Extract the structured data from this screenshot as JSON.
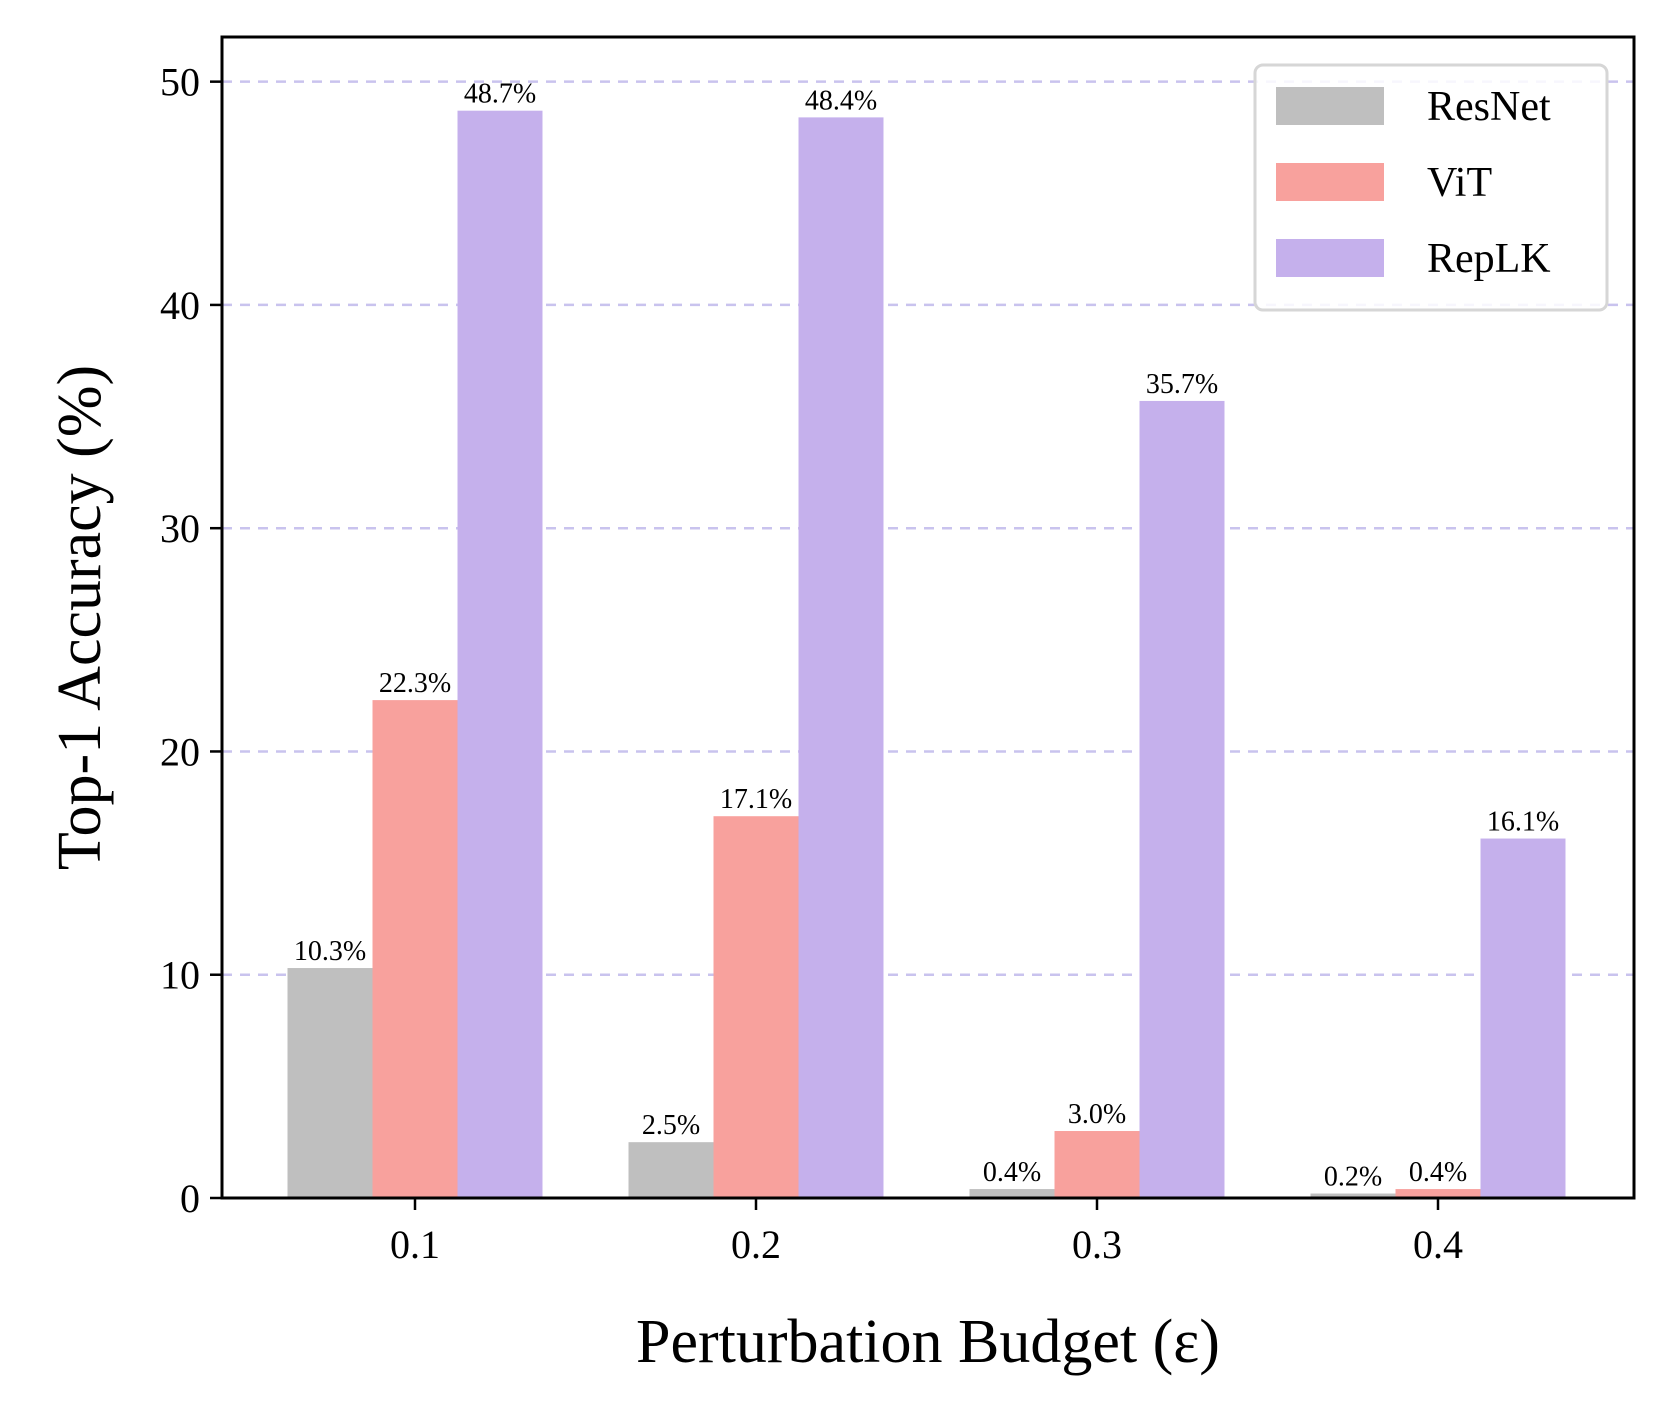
{
  "chart_data": {
    "type": "bar",
    "title": "",
    "xlabel": "Perturbation Budget (ε)",
    "ylabel": "Top-1 Accuracy (%)",
    "categories": [
      "0.1",
      "0.2",
      "0.3",
      "0.4"
    ],
    "ylim": [
      0,
      52
    ],
    "yticks": [
      "0",
      "10",
      "20",
      "30",
      "40",
      "50"
    ],
    "grid": "horizontal dashed",
    "legend_position": "top-right",
    "series": [
      {
        "name": "ResNet",
        "color": "#bfbfbf",
        "values": [
          10.3,
          2.5,
          0.4,
          0.2
        ],
        "labels": [
          "10.3%",
          "2.5%",
          "0.4%",
          "0.2%"
        ]
      },
      {
        "name": "ViT",
        "color": "#f8a19d",
        "values": [
          22.3,
          17.1,
          3.0,
          0.4
        ],
        "labels": [
          "22.3%",
          "17.1%",
          "3.0%",
          "0.4%"
        ]
      },
      {
        "name": "RepLK",
        "color": "#c5b0ec",
        "values": [
          48.7,
          48.4,
          35.7,
          16.1
        ],
        "labels": [
          "48.7%",
          "48.4%",
          "35.7%",
          "16.1%"
        ]
      }
    ]
  }
}
